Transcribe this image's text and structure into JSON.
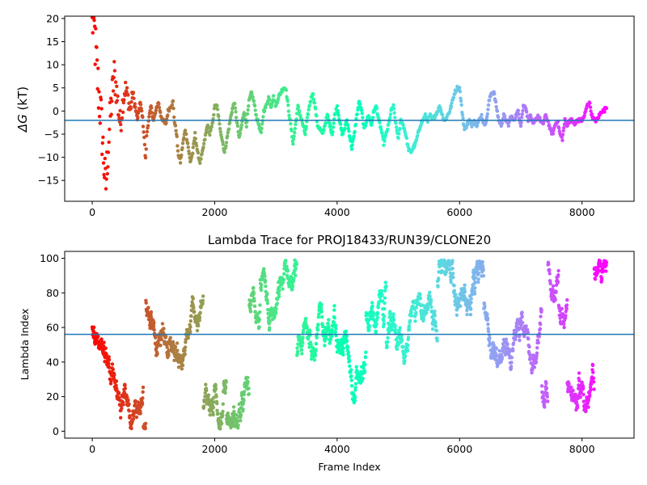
{
  "chart_data": [
    {
      "type": "scatter",
      "title": "",
      "xlabel": "",
      "ylabel_symbol": "ΔG",
      "ylabel_unit": "(kT)",
      "xlim": [
        -450,
        8850
      ],
      "ylim": [
        -19.5,
        20.5
      ],
      "xticks": [
        0,
        2000,
        4000,
        6000,
        8000
      ],
      "yticks": [
        -15,
        -10,
        -5,
        0,
        5,
        10,
        15,
        20
      ],
      "hline": -2.0,
      "hline_color": "#1f77b4",
      "colormap": "rainbow (red at frame 0 → violet at frame 8400)",
      "x_max": 8400,
      "trace_points": [
        [
          0,
          20
        ],
        [
          20,
          19
        ],
        [
          40,
          16
        ],
        [
          60,
          12
        ],
        [
          80,
          8
        ],
        [
          100,
          5
        ],
        [
          120,
          2
        ],
        [
          140,
          -1
        ],
        [
          160,
          -5
        ],
        [
          180,
          -9
        ],
        [
          200,
          -13
        ],
        [
          220,
          -17
        ],
        [
          240,
          -12
        ],
        [
          260,
          -8
        ],
        [
          280,
          -4
        ],
        [
          300,
          0
        ],
        [
          330,
          4
        ],
        [
          360,
          8
        ],
        [
          400,
          4
        ],
        [
          430,
          0
        ],
        [
          460,
          -3
        ],
        [
          500,
          2
        ],
        [
          540,
          5
        ],
        [
          580,
          3
        ],
        [
          620,
          0
        ],
        [
          660,
          4
        ],
        [
          700,
          1
        ],
        [
          740,
          -2
        ],
        [
          780,
          2
        ],
        [
          820,
          -1
        ],
        [
          850,
          -6
        ],
        [
          870,
          -11
        ],
        [
          890,
          -5
        ],
        [
          920,
          -2
        ],
        [
          960,
          1
        ],
        [
          1000,
          -2
        ],
        [
          1040,
          0
        ],
        [
          1080,
          2
        ],
        [
          1120,
          -1
        ],
        [
          1160,
          -2
        ],
        [
          1200,
          -3
        ],
        [
          1240,
          0
        ],
        [
          1280,
          1
        ],
        [
          1320,
          2
        ],
        [
          1340,
          -2
        ],
        [
          1380,
          -5
        ],
        [
          1400,
          -9
        ],
        [
          1440,
          -11
        ],
        [
          1480,
          -7
        ],
        [
          1520,
          -4
        ],
        [
          1560,
          -7
        ],
        [
          1600,
          -11
        ],
        [
          1640,
          -9
        ],
        [
          1680,
          -5
        ],
        [
          1720,
          -9
        ],
        [
          1760,
          -11
        ],
        [
          1800,
          -9
        ],
        [
          1840,
          -6
        ],
        [
          1880,
          -3
        ],
        [
          1920,
          -5
        ],
        [
          1960,
          -3
        ],
        [
          2000,
          1
        ],
        [
          2040,
          1
        ],
        [
          2080,
          -3
        ],
        [
          2120,
          -6
        ],
        [
          2160,
          -9
        ],
        [
          2200,
          -6
        ],
        [
          2240,
          -3
        ],
        [
          2280,
          0
        ],
        [
          2320,
          2
        ],
        [
          2360,
          -2
        ],
        [
          2400,
          -6
        ],
        [
          2440,
          -3
        ],
        [
          2480,
          0
        ],
        [
          2520,
          -3
        ],
        [
          2560,
          2
        ],
        [
          2600,
          4
        ],
        [
          2640,
          2
        ],
        [
          2680,
          -1
        ],
        [
          2720,
          -3
        ],
        [
          2760,
          -5
        ],
        [
          2800,
          0
        ],
        [
          2840,
          1
        ],
        [
          2880,
          3
        ],
        [
          2920,
          1
        ],
        [
          2960,
          3
        ],
        [
          3000,
          1
        ],
        [
          3040,
          3
        ],
        [
          3080,
          4
        ],
        [
          3120,
          5
        ],
        [
          3160,
          5
        ],
        [
          3200,
          1
        ],
        [
          3240,
          -3
        ],
        [
          3280,
          -7
        ],
        [
          3320,
          -3
        ],
        [
          3360,
          1
        ],
        [
          3400,
          -1
        ],
        [
          3440,
          -3
        ],
        [
          3480,
          -5
        ],
        [
          3520,
          -1
        ],
        [
          3560,
          2
        ],
        [
          3600,
          4
        ],
        [
          3640,
          1
        ],
        [
          3680,
          -3
        ],
        [
          3720,
          -4
        ],
        [
          3760,
          -5
        ],
        [
          3800,
          -3
        ],
        [
          3840,
          -1
        ],
        [
          3880,
          -3
        ],
        [
          3920,
          -5
        ],
        [
          3960,
          -1
        ],
        [
          4000,
          1
        ],
        [
          4040,
          -2
        ],
        [
          4080,
          -5
        ],
        [
          4120,
          -4
        ],
        [
          4160,
          -2
        ],
        [
          4200,
          -5
        ],
        [
          4240,
          -8
        ],
        [
          4280,
          -5
        ],
        [
          4320,
          -1
        ],
        [
          4360,
          2
        ],
        [
          4400,
          0
        ],
        [
          4440,
          -4
        ],
        [
          4480,
          -2
        ],
        [
          4520,
          -1
        ],
        [
          4560,
          -3
        ],
        [
          4600,
          0
        ],
        [
          4640,
          1
        ],
        [
          4680,
          -2
        ],
        [
          4720,
          -4
        ],
        [
          4760,
          -7
        ],
        [
          4800,
          -5
        ],
        [
          4840,
          -3
        ],
        [
          4880,
          0
        ],
        [
          4920,
          1
        ],
        [
          4960,
          -3
        ],
        [
          5000,
          -6
        ],
        [
          5040,
          -2
        ],
        [
          5080,
          -3
        ],
        [
          5120,
          -5
        ],
        [
          5160,
          -8
        ],
        [
          5200,
          -9
        ],
        [
          5240,
          -8
        ],
        [
          5280,
          -7
        ],
        [
          5320,
          -5
        ],
        [
          5360,
          -3
        ],
        [
          5400,
          -2
        ],
        [
          5440,
          -1
        ],
        [
          5480,
          -2
        ],
        [
          5520,
          -1
        ],
        [
          5560,
          -2
        ],
        [
          5600,
          -1
        ],
        [
          5640,
          0
        ],
        [
          5680,
          1
        ],
        [
          5720,
          -1
        ],
        [
          5760,
          -2
        ],
        [
          5800,
          -1
        ],
        [
          5840,
          0
        ],
        [
          5880,
          2
        ],
        [
          5920,
          4
        ],
        [
          5960,
          5
        ],
        [
          6000,
          5
        ],
        [
          6040,
          0
        ],
        [
          6080,
          -4
        ],
        [
          6120,
          -3
        ],
        [
          6160,
          -2
        ],
        [
          6200,
          -3
        ],
        [
          6240,
          -2
        ],
        [
          6280,
          -3
        ],
        [
          6320,
          -2
        ],
        [
          6360,
          -1
        ],
        [
          6400,
          -3
        ],
        [
          6440,
          -2
        ],
        [
          6480,
          2
        ],
        [
          6520,
          4
        ],
        [
          6560,
          4
        ],
        [
          6600,
          1
        ],
        [
          6640,
          -2
        ],
        [
          6680,
          -3
        ],
        [
          6720,
          -1
        ],
        [
          6760,
          -2
        ],
        [
          6800,
          -3
        ],
        [
          6840,
          -1
        ],
        [
          6880,
          -2
        ],
        [
          6920,
          -1
        ],
        [
          6960,
          0
        ],
        [
          7000,
          -3
        ],
        [
          7040,
          1
        ],
        [
          7080,
          1
        ],
        [
          7120,
          -2
        ],
        [
          7160,
          -1
        ],
        [
          7200,
          -3
        ],
        [
          7240,
          -2
        ],
        [
          7280,
          -1
        ],
        [
          7320,
          -2
        ],
        [
          7360,
          -3
        ],
        [
          7400,
          -1
        ],
        [
          7440,
          -2
        ],
        [
          7480,
          -4
        ],
        [
          7520,
          -5
        ],
        [
          7560,
          -3
        ],
        [
          7600,
          -2
        ],
        [
          7640,
          -5
        ],
        [
          7680,
          -6
        ],
        [
          7720,
          -2
        ],
        [
          7760,
          -3
        ],
        [
          7800,
          -2
        ],
        [
          7840,
          -2
        ],
        [
          7880,
          -3
        ],
        [
          7920,
          -2
        ],
        [
          7960,
          -2
        ],
        [
          8000,
          -2
        ],
        [
          8040,
          -1
        ],
        [
          8080,
          1
        ],
        [
          8120,
          2
        ],
        [
          8160,
          -1
        ],
        [
          8200,
          -2
        ],
        [
          8240,
          -2
        ],
        [
          8280,
          -1
        ],
        [
          8320,
          0
        ],
        [
          8360,
          0
        ],
        [
          8400,
          1
        ]
      ]
    },
    {
      "type": "scatter",
      "title": "Lambda Trace for PROJ18433/RUN39/CLONE20",
      "xlabel": "Frame Index",
      "ylabel": "Lambda Index",
      "xlim": [
        -450,
        8850
      ],
      "ylim": [
        -4,
        104
      ],
      "xticks": [
        0,
        2000,
        4000,
        6000,
        8000
      ],
      "yticks": [
        0,
        20,
        40,
        60,
        80,
        100
      ],
      "hline": 56,
      "hline_color": "#1f77b4",
      "colormap": "rainbow (red at frame 0 → violet at frame 8400)",
      "x_max": 8400,
      "lambda_range": [
        0,
        99
      ]
    }
  ]
}
